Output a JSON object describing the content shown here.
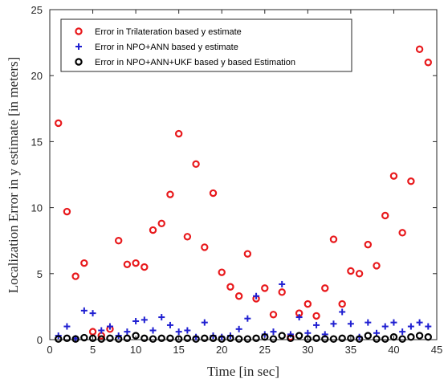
{
  "chart_data": {
    "type": "scatter",
    "xlabel": "Time [in sec]",
    "ylabel": "Localization Error in y estimate [in meters]",
    "xlim": [
      0,
      45
    ],
    "ylim": [
      0,
      25
    ],
    "xticks": [
      0,
      5,
      10,
      15,
      20,
      25,
      30,
      35,
      40,
      45
    ],
    "yticks": [
      0,
      5,
      10,
      15,
      20,
      25
    ],
    "grid": false,
    "legend_position": "top-left",
    "series": [
      {
        "name": "Error in Trilateration based y estimate",
        "marker": "circle-open",
        "color": "#e8191c",
        "x": [
          1,
          2,
          3,
          4,
          5,
          6,
          7,
          8,
          9,
          10,
          11,
          12,
          13,
          14,
          15,
          16,
          17,
          18,
          19,
          20,
          21,
          22,
          23,
          24,
          25,
          26,
          27,
          28,
          29,
          30,
          31,
          32,
          33,
          34,
          35,
          36,
          37,
          38,
          39,
          40,
          41,
          42,
          43,
          44
        ],
        "y": [
          16.4,
          9.7,
          4.8,
          5.8,
          0.6,
          0.3,
          0.8,
          7.5,
          5.7,
          5.8,
          5.5,
          8.3,
          8.8,
          11.0,
          15.6,
          7.8,
          13.3,
          7.0,
          11.1,
          5.1,
          4.0,
          3.3,
          6.5,
          3.1,
          3.9,
          1.9,
          3.6,
          0.2,
          2.0,
          2.7,
          1.8,
          3.9,
          7.6,
          2.7,
          5.2,
          5.0,
          7.2,
          5.6,
          9.4,
          12.4,
          8.1,
          12.0,
          22.0,
          21.0
        ]
      },
      {
        "name": "Error in NPO+ANN based y estimate",
        "marker": "plus",
        "color": "#1f1fd1",
        "x": [
          1,
          2,
          3,
          4,
          5,
          6,
          7,
          8,
          9,
          10,
          11,
          12,
          13,
          14,
          15,
          16,
          17,
          18,
          19,
          20,
          21,
          22,
          23,
          24,
          25,
          26,
          27,
          28,
          29,
          30,
          31,
          32,
          33,
          34,
          35,
          36,
          37,
          38,
          39,
          40,
          41,
          42,
          43,
          44
        ],
        "y": [
          0.3,
          1.0,
          0.1,
          2.2,
          2.0,
          0.7,
          1.0,
          0.3,
          0.6,
          1.4,
          1.5,
          0.7,
          1.7,
          1.1,
          0.6,
          0.7,
          0.2,
          1.3,
          0.3,
          0.2,
          0.3,
          0.8,
          1.6,
          3.3,
          0.4,
          0.6,
          4.2,
          0.4,
          1.7,
          0.5,
          1.1,
          0.4,
          1.2,
          2.1,
          1.2,
          0.2,
          1.3,
          0.5,
          1.0,
          1.3,
          0.6,
          1.0,
          1.3,
          1.0
        ]
      },
      {
        "name": "Error in NPO+ANN+UKF based y  based Estimation",
        "marker": "circle-open",
        "color": "#000000",
        "x": [
          1,
          2,
          3,
          4,
          5,
          6,
          7,
          8,
          9,
          10,
          11,
          12,
          13,
          14,
          15,
          16,
          17,
          18,
          19,
          20,
          21,
          22,
          23,
          24,
          25,
          26,
          27,
          28,
          29,
          30,
          31,
          32,
          33,
          34,
          35,
          36,
          37,
          38,
          39,
          40,
          41,
          42,
          43,
          44
        ],
        "y": [
          0.05,
          0.1,
          0.05,
          0.15,
          0.1,
          0.05,
          0.1,
          0.05,
          0.1,
          0.3,
          0.1,
          0.05,
          0.1,
          0.1,
          0.05,
          0.1,
          0.05,
          0.1,
          0.1,
          0.05,
          0.1,
          0.05,
          0.05,
          0.1,
          0.2,
          0.05,
          0.3,
          0.1,
          0.3,
          0.05,
          0.1,
          0.05,
          0.05,
          0.1,
          0.1,
          0.05,
          0.3,
          0.05,
          0.05,
          0.2,
          0.05,
          0.2,
          0.3,
          0.2
        ]
      }
    ]
  }
}
